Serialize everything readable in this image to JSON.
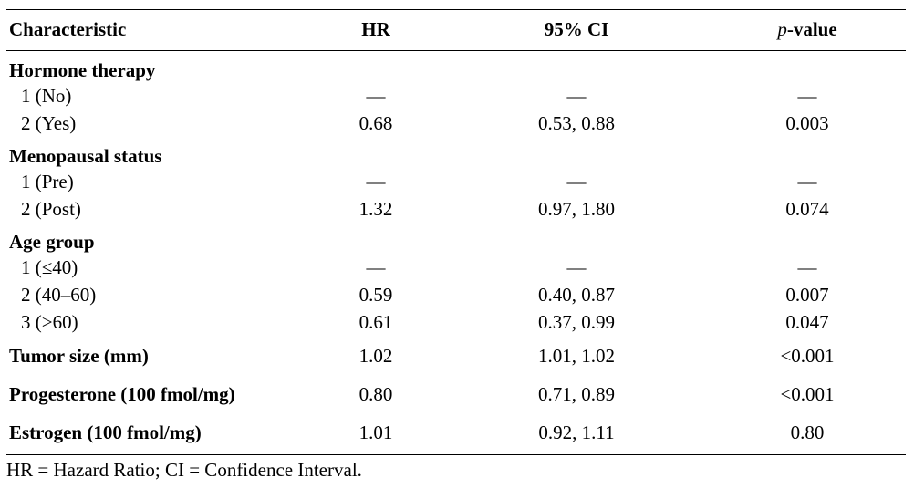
{
  "table": {
    "headers": {
      "characteristic": "Characteristic",
      "hr": "HR",
      "ci": "95% CI",
      "p_italic": "p",
      "p_rest": "-value"
    },
    "groups": [
      {
        "title": "Hormone therapy",
        "rows": [
          {
            "label": "1 (No)",
            "hr": "—",
            "ci": "—",
            "p": "—"
          },
          {
            "label": "2 (Yes)",
            "hr": "0.68",
            "ci": "0.53, 0.88",
            "p": "0.003"
          }
        ]
      },
      {
        "title": "Menopausal status",
        "rows": [
          {
            "label": "1 (Pre)",
            "hr": "—",
            "ci": "—",
            "p": "—"
          },
          {
            "label": "2 (Post)",
            "hr": "1.32",
            "ci": "0.97, 1.80",
            "p": "0.074"
          }
        ]
      },
      {
        "title": "Age group",
        "rows": [
          {
            "label": "1 (≤40)",
            "hr": "—",
            "ci": "—",
            "p": "—"
          },
          {
            "label": "2 (40–60)",
            "hr": "0.59",
            "ci": "0.40, 0.87",
            "p": "0.007"
          },
          {
            "label": "3 (>60)",
            "hr": "0.61",
            "ci": "0.37, 0.99",
            "p": "0.047"
          }
        ]
      }
    ],
    "singles": [
      {
        "label": "Tumor size (mm)",
        "hr": "1.02",
        "ci": "1.01, 1.02",
        "p": "<0.001"
      },
      {
        "label": "Progesterone (100 fmol/mg)",
        "hr": "0.80",
        "ci": "0.71, 0.89",
        "p": "<0.001"
      },
      {
        "label": "Estrogen (100 fmol/mg)",
        "hr": "1.01",
        "ci": "0.92, 1.11",
        "p": "0.80"
      }
    ]
  },
  "footnote": "HR = Hazard Ratio; CI = Confidence Interval."
}
